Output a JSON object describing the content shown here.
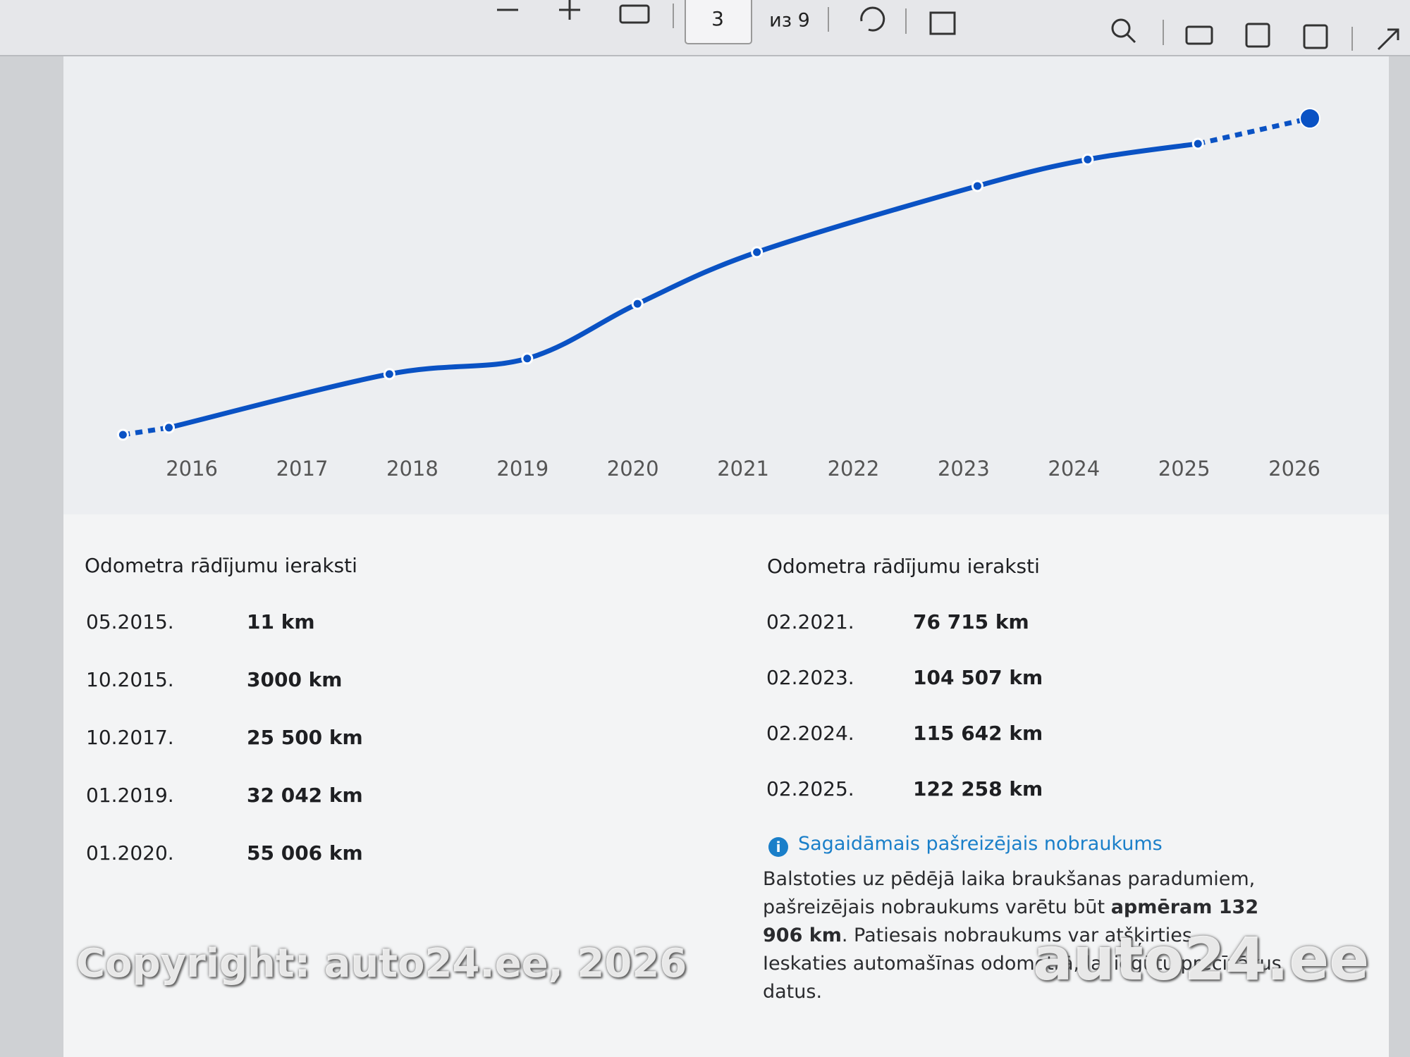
{
  "toolbar": {
    "page_number": "3",
    "page_count": "из 9"
  },
  "chart": {
    "type": "line",
    "color": "#0a52c4",
    "xlim": [
      2015.2,
      2026.3
    ],
    "xticks": [
      2016,
      2017,
      2018,
      2019,
      2020,
      2021,
      2022,
      2023,
      2024,
      2025,
      2026
    ]
  },
  "records_left": {
    "title": "Odometra rādījumu ieraksti",
    "rows": [
      {
        "date": "05.2015.",
        "mileage": 11,
        "label": "11 km"
      },
      {
        "date": "10.2015.",
        "mileage": 3000,
        "label": "3000 km"
      },
      {
        "date": "10.2017.",
        "mileage": 25500,
        "label": "25 500 km"
      },
      {
        "date": "01.2019.",
        "mileage": 32042,
        "label": "32 042 km"
      },
      {
        "date": "01.2020.",
        "mileage": 55006,
        "label": "55 006 km"
      }
    ]
  },
  "records_right": {
    "title": "Odometra rādījumu ieraksti",
    "rows": [
      {
        "date": "02.2021.",
        "mileage": 76715,
        "label": "76 715 km"
      },
      {
        "date": "02.2023.",
        "mileage": 104507,
        "label": "104 507 km"
      },
      {
        "date": "02.2024.",
        "mileage": 115642,
        "label": "115 642 km"
      },
      {
        "date": "02.2025.",
        "mileage": 122258,
        "label": "122 258 km"
      }
    ]
  },
  "estimate": {
    "heading": "Sagaidāmais pašreizējais nobraukums",
    "text_before": "Balstoties uz pēdējā laika braukšanas paradumiem, pašreizējais nobraukums varētu būt",
    "emphasis": "apmēram 132 906 km",
    "mileage": 132906,
    "text_after": ". Patiesais nobraukums var atšķirties. Ieskaties automašīnas odometrā, lai iegūtu precīzākus datus."
  },
  "watermarks": [
    "Copyright: auto24.ee, 2026",
    "auto24.ee"
  ]
}
